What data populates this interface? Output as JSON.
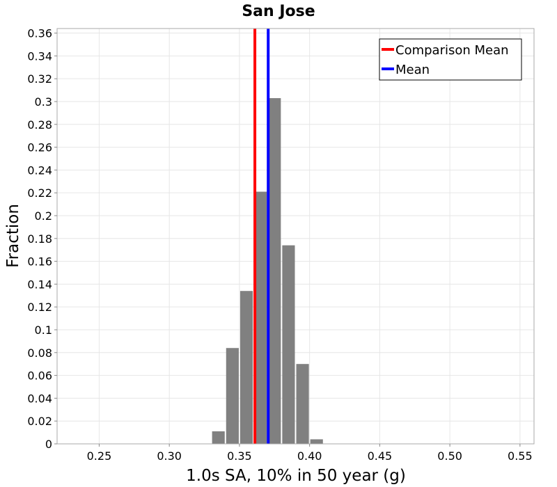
{
  "chart_data": {
    "type": "bar",
    "title": "San Jose",
    "xlabel": "1.0s SA, 10% in 50 year (g)",
    "ylabel": "Fraction",
    "xlim": [
      0.22,
      0.56
    ],
    "ylim": [
      0,
      0.364
    ],
    "xticks": [
      "0.25",
      "0.30",
      "0.35",
      "0.40",
      "0.45",
      "0.50",
      "0.55"
    ],
    "xtick_values": [
      0.25,
      0.3,
      0.35,
      0.4,
      0.45,
      0.5,
      0.55
    ],
    "yticks": [
      "0",
      "0.02",
      "0.04",
      "0.06",
      "0.08",
      "0.1",
      "0.12",
      "0.14",
      "0.16",
      "0.18",
      "0.2",
      "0.22",
      "0.24",
      "0.26",
      "0.28",
      "0.3",
      "0.32",
      "0.34",
      "0.36"
    ],
    "ytick_values": [
      0,
      0.02,
      0.04,
      0.06,
      0.08,
      0.1,
      0.12,
      0.14,
      0.16,
      0.18,
      0.2,
      0.22,
      0.24,
      0.26,
      0.28,
      0.3,
      0.32,
      0.34,
      0.36
    ],
    "bin_width": 0.01,
    "bins": [
      {
        "x": 0.335,
        "value": 0.011
      },
      {
        "x": 0.345,
        "value": 0.084
      },
      {
        "x": 0.355,
        "value": 0.134
      },
      {
        "x": 0.365,
        "value": 0.221
      },
      {
        "x": 0.375,
        "value": 0.303
      },
      {
        "x": 0.385,
        "value": 0.174
      },
      {
        "x": 0.395,
        "value": 0.07
      },
      {
        "x": 0.405,
        "value": 0.004
      }
    ],
    "vlines": [
      {
        "name": "Comparison Mean",
        "x": 0.361,
        "color": "#ff0000"
      },
      {
        "name": "Mean",
        "x": 0.3705,
        "color": "#0000ff"
      }
    ],
    "bar_color": "#808080",
    "grid": true,
    "legend_position": "top-right"
  }
}
